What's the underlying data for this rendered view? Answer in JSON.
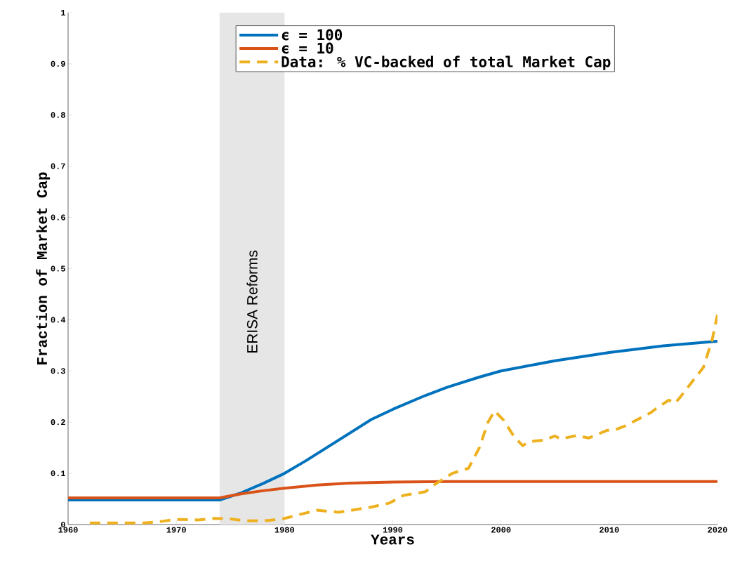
{
  "chart_data": {
    "type": "line",
    "xlabel": "Years",
    "ylabel": "Fraction of Market Cap",
    "xlim": [
      1960,
      2020
    ],
    "ylim": [
      0,
      1
    ],
    "xticks": [
      1960,
      1970,
      1980,
      1990,
      2000,
      2010,
      2020
    ],
    "yticks": [
      0,
      0.1,
      0.2,
      0.3,
      0.4,
      0.5,
      0.6,
      0.7,
      0.8,
      0.9,
      1
    ],
    "grid": false,
    "legend": "top",
    "marker": "none",
    "bands": [
      {
        "axis": "x",
        "from": 1974,
        "to": 1980,
        "label": "ERISA Reforms",
        "color": "#e6e6e6"
      }
    ],
    "series": [
      {
        "name": "ϵ = 100",
        "color": "#0072bd",
        "line_style": "solid",
        "x": [
          1960,
          1974,
          1976,
          1978,
          1980,
          1982,
          1985,
          1988,
          1990,
          1993,
          1995,
          1998,
          2000,
          2005,
          2010,
          2015,
          2020
        ],
        "values": [
          0.048,
          0.048,
          0.062,
          0.08,
          0.1,
          0.125,
          0.165,
          0.205,
          0.225,
          0.252,
          0.268,
          0.288,
          0.3,
          0.32,
          0.336,
          0.349,
          0.358
        ]
      },
      {
        "name": "ϵ = 10",
        "color": "#d95319",
        "line_style": "solid",
        "x": [
          1960,
          1974,
          1976,
          1978,
          1980,
          1983,
          1986,
          1990,
          1995,
          2020
        ],
        "values": [
          0.052,
          0.052,
          0.06,
          0.066,
          0.071,
          0.077,
          0.081,
          0.083,
          0.084,
          0.084
        ]
      },
      {
        "name": "Data: % VC-backed of total Market Cap",
        "color": "#edb120",
        "line_style": "dashed",
        "x": [
          1962,
          1967,
          1968.6,
          1970,
          1972,
          1973.5,
          1975,
          1976.5,
          1978.5,
          1980,
          1981.5,
          1983,
          1985,
          1986.5,
          1988,
          1989.7,
          1991,
          1993,
          1994,
          1995.5,
          1997,
          1998,
          1998.8,
          1999.4,
          2000.2,
          2001.2,
          2002,
          2002.6,
          2004,
          2005,
          2005.5,
          2007,
          2008.1,
          2009.8,
          2010.4,
          2011.5,
          2013.8,
          2014.3,
          2015.5,
          2016.1,
          2016.6,
          2018.7,
          2019.5,
          2020
        ],
        "values": [
          0.003,
          0.003,
          0.006,
          0.01,
          0.009,
          0.012,
          0.011,
          0.007,
          0.008,
          0.012,
          0.02,
          0.028,
          0.024,
          0.029,
          0.034,
          0.042,
          0.057,
          0.064,
          0.08,
          0.1,
          0.11,
          0.15,
          0.2,
          0.222,
          0.205,
          0.172,
          0.154,
          0.162,
          0.165,
          0.173,
          0.167,
          0.174,
          0.169,
          0.184,
          0.184,
          0.193,
          0.218,
          0.226,
          0.243,
          0.237,
          0.25,
          0.307,
          0.36,
          0.41
        ]
      }
    ]
  }
}
